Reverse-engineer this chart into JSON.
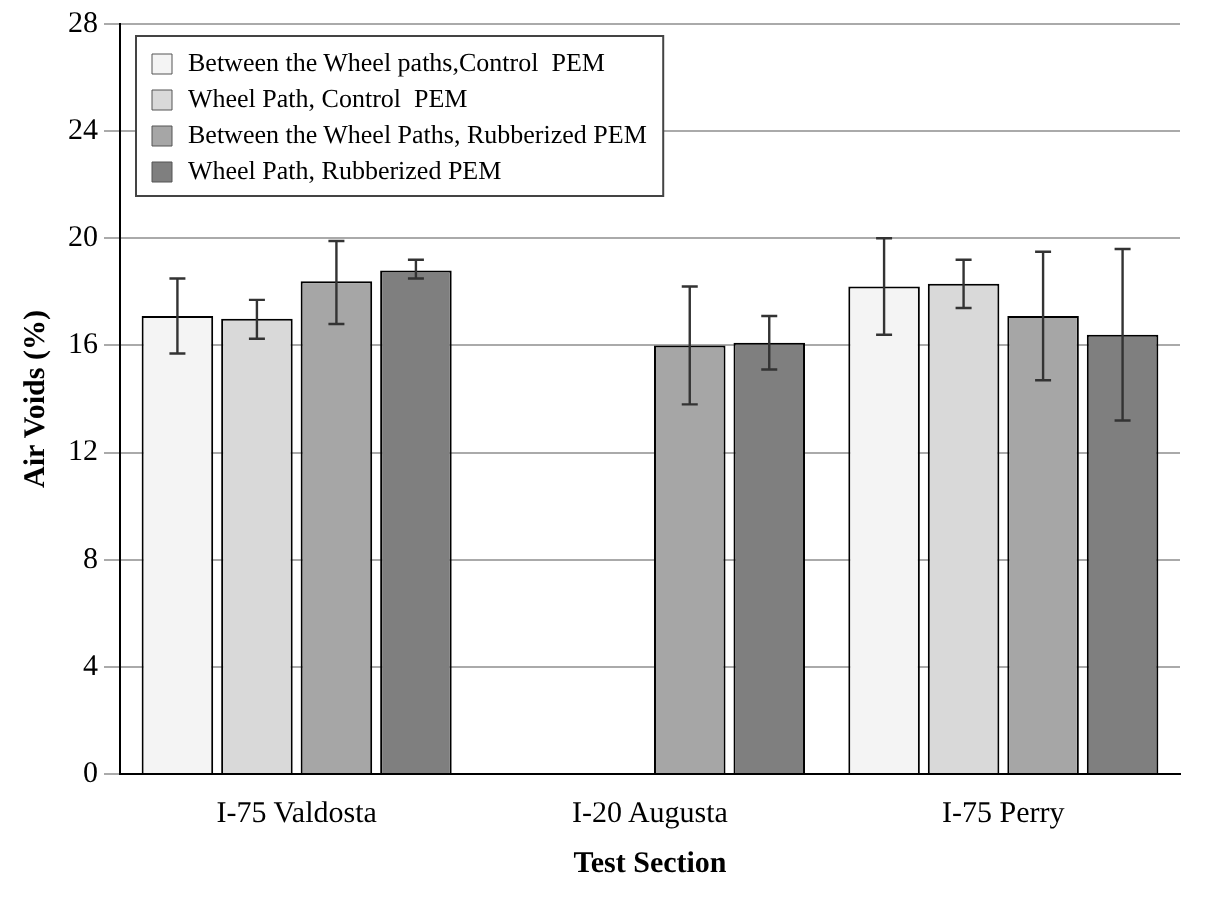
{
  "chart_data": {
    "type": "bar",
    "xlabel": "Test Section",
    "ylabel": "Air Voids (%)",
    "categories": [
      "I-75 Valdosta",
      "I-20 Augusta",
      "I-75 Perry"
    ],
    "series": [
      {
        "name": "Between the Wheel paths,Control  PEM",
        "color": "#f4f4f4",
        "values": [
          17.1,
          null,
          18.2
        ],
        "errors": [
          [
            15.7,
            18.5
          ],
          null,
          [
            16.4,
            20.0
          ]
        ]
      },
      {
        "name": "Wheel Path, Control  PEM",
        "color": "#d9d9d9",
        "values": [
          17.0,
          null,
          18.3
        ],
        "errors": [
          [
            16.25,
            17.7
          ],
          null,
          [
            17.4,
            19.2
          ]
        ]
      },
      {
        "name": "Between the Wheel Paths, Rubberized PEM",
        "color": "#a6a6a6",
        "values": [
          18.4,
          16.0,
          17.1
        ],
        "errors": [
          [
            16.8,
            19.9
          ],
          [
            13.8,
            18.2
          ],
          [
            14.7,
            19.5
          ]
        ]
      },
      {
        "name": "Wheel Path, Rubberized PEM",
        "color": "#7f7f7f",
        "values": [
          18.8,
          16.1,
          16.4
        ],
        "errors": [
          [
            18.5,
            19.2
          ],
          [
            15.1,
            17.1
          ],
          [
            13.2,
            19.6
          ]
        ]
      }
    ],
    "ylim": [
      0,
      28
    ],
    "yticks": [
      0,
      4,
      8,
      12,
      16,
      20,
      24,
      28
    ],
    "grid": "y",
    "legend": "top left"
  }
}
